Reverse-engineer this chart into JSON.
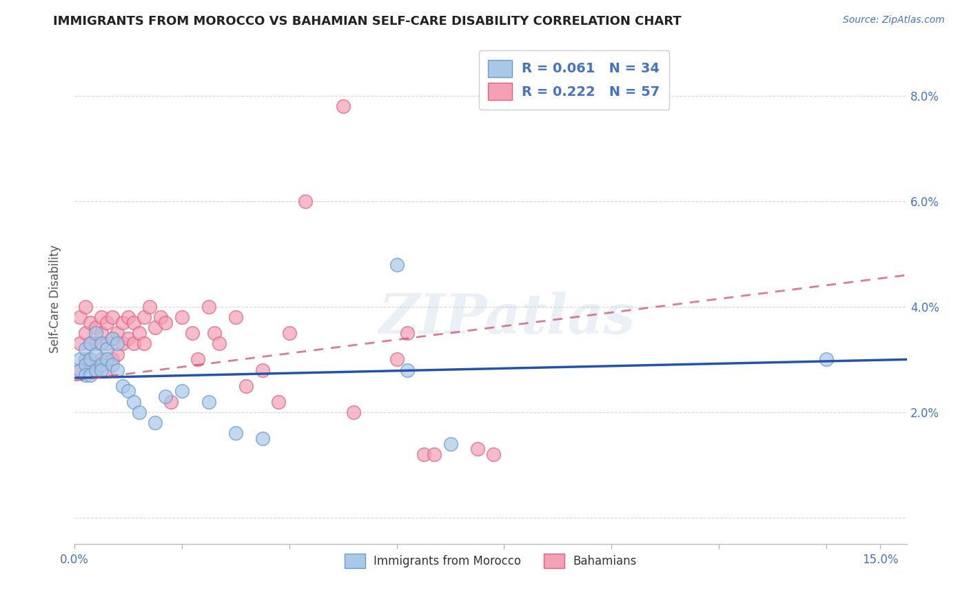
{
  "title": "IMMIGRANTS FROM MOROCCO VS BAHAMIAN SELF-CARE DISABILITY CORRELATION CHART",
  "source": "Source: ZipAtlas.com",
  "ylabel": "Self-Care Disability",
  "legend_label1": "Immigrants from Morocco",
  "legend_label2": "Bahamians",
  "R1": 0.061,
  "N1": 34,
  "R2": 0.222,
  "N2": 57,
  "color1": "#a8c8e8",
  "color2": "#f4a0b5",
  "color1_edge": "#6699cc",
  "color2_edge": "#e06080",
  "trendline1_color": "#2255aa",
  "trendline2_color": "#cc4466",
  "x_lim": [
    0.0,
    0.155
  ],
  "y_lim": [
    -0.005,
    0.088
  ],
  "y_ticks": [
    0.0,
    0.02,
    0.04,
    0.06,
    0.08
  ],
  "x_ticks": [
    0.0,
    0.15
  ],
  "x_tick_labels": [
    "0.0%",
    "15.0%"
  ],
  "y_tick_labels_right": [
    "",
    "2.0%",
    "4.0%",
    "6.0%",
    "8.0%"
  ],
  "scatter1_x": [
    0.001,
    0.001,
    0.002,
    0.002,
    0.002,
    0.003,
    0.003,
    0.003,
    0.004,
    0.004,
    0.004,
    0.005,
    0.005,
    0.005,
    0.006,
    0.006,
    0.007,
    0.007,
    0.008,
    0.008,
    0.009,
    0.01,
    0.011,
    0.012,
    0.015,
    0.017,
    0.02,
    0.025,
    0.03,
    0.035,
    0.06,
    0.062,
    0.07,
    0.14
  ],
  "scatter1_y": [
    0.03,
    0.028,
    0.032,
    0.029,
    0.027,
    0.033,
    0.03,
    0.027,
    0.035,
    0.031,
    0.028,
    0.033,
    0.029,
    0.028,
    0.032,
    0.03,
    0.034,
    0.029,
    0.033,
    0.028,
    0.025,
    0.024,
    0.022,
    0.02,
    0.018,
    0.023,
    0.024,
    0.022,
    0.016,
    0.015,
    0.048,
    0.028,
    0.014,
    0.03
  ],
  "scatter2_x": [
    0.001,
    0.001,
    0.001,
    0.002,
    0.002,
    0.002,
    0.003,
    0.003,
    0.003,
    0.004,
    0.004,
    0.004,
    0.005,
    0.005,
    0.005,
    0.006,
    0.006,
    0.006,
    0.007,
    0.007,
    0.007,
    0.008,
    0.008,
    0.009,
    0.009,
    0.01,
    0.01,
    0.011,
    0.011,
    0.012,
    0.013,
    0.013,
    0.014,
    0.015,
    0.016,
    0.017,
    0.018,
    0.02,
    0.022,
    0.023,
    0.025,
    0.026,
    0.027,
    0.03,
    0.032,
    0.035,
    0.038,
    0.04,
    0.043,
    0.05,
    0.052,
    0.06,
    0.062,
    0.065,
    0.067,
    0.075,
    0.078
  ],
  "scatter2_y": [
    0.028,
    0.033,
    0.038,
    0.03,
    0.035,
    0.04,
    0.029,
    0.033,
    0.037,
    0.028,
    0.033,
    0.036,
    0.03,
    0.035,
    0.038,
    0.028,
    0.033,
    0.037,
    0.03,
    0.034,
    0.038,
    0.031,
    0.035,
    0.033,
    0.037,
    0.034,
    0.038,
    0.033,
    0.037,
    0.035,
    0.038,
    0.033,
    0.04,
    0.036,
    0.038,
    0.037,
    0.022,
    0.038,
    0.035,
    0.03,
    0.04,
    0.035,
    0.033,
    0.038,
    0.025,
    0.028,
    0.022,
    0.035,
    0.06,
    0.078,
    0.02,
    0.03,
    0.035,
    0.012,
    0.012,
    0.013,
    0.012
  ],
  "trendline1_x": [
    0.0,
    0.155
  ],
  "trendline1_y": [
    0.0265,
    0.03
  ],
  "trendline2_x": [
    0.0,
    0.155
  ],
  "trendline2_y": [
    0.026,
    0.046
  ],
  "watermark": "ZIPatlas",
  "background_color": "#ffffff",
  "grid_color": "#cccccc"
}
